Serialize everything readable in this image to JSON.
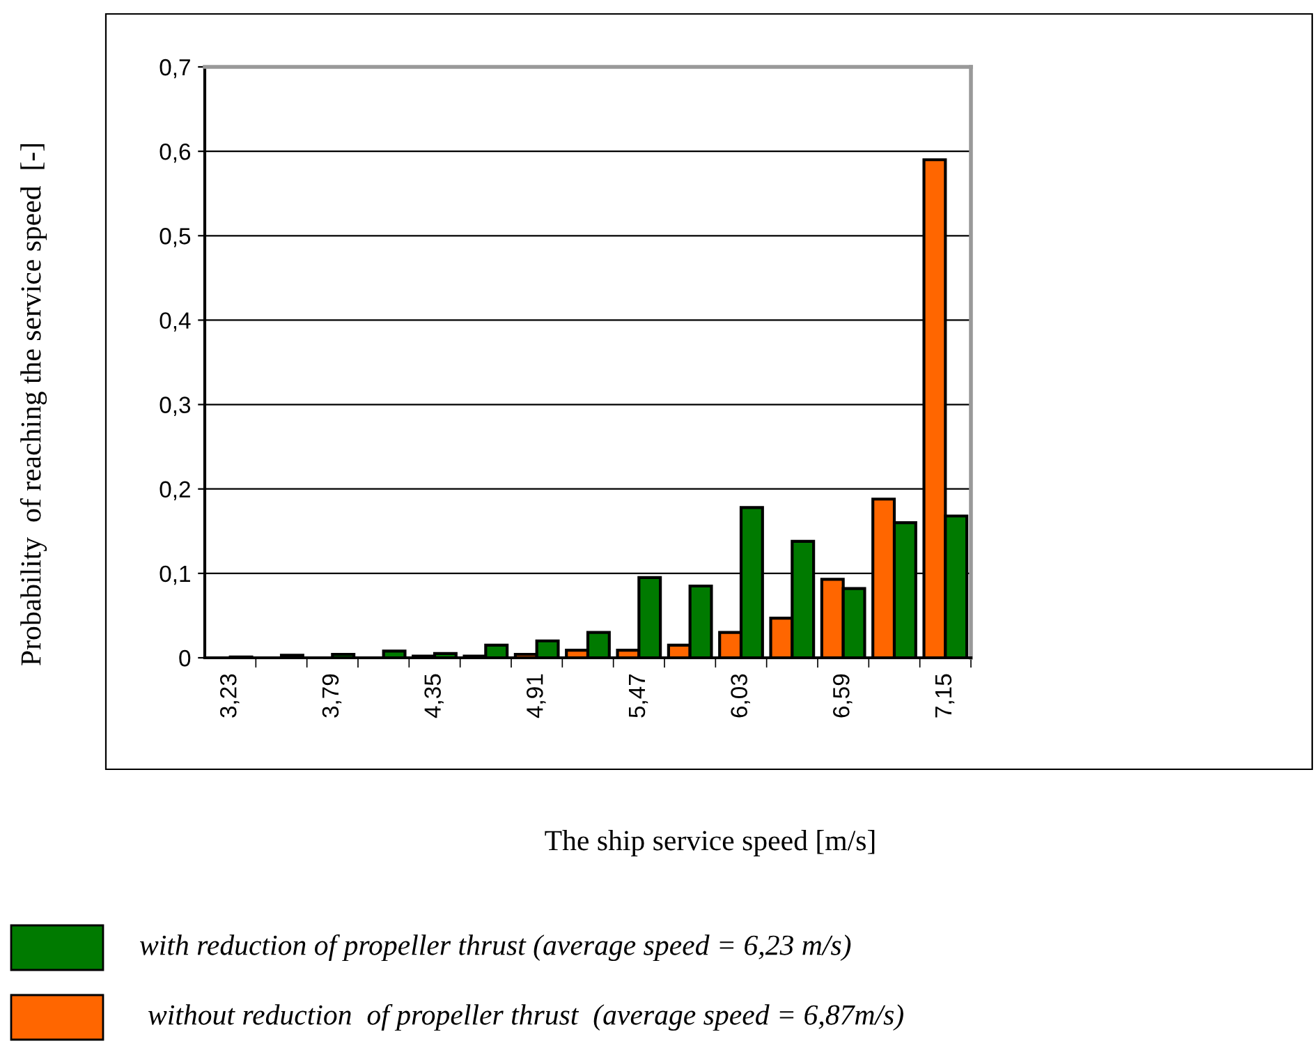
{
  "chart_data": {
    "type": "bar",
    "xlabel": "The ship service speed [m/s]",
    "ylabel": "Probability  of reaching the service speed  [-]",
    "categories": [
      "3,23",
      null,
      "3,79",
      null,
      "4,35",
      null,
      "4,91",
      null,
      "5,47",
      null,
      "6,03",
      null,
      "6,59",
      null,
      "7,15"
    ],
    "series": [
      {
        "name": "without reduction  of propeller thrust  (average speed = 6,87m/s)",
        "color": "#ff6600",
        "values": [
          null,
          null,
          null,
          null,
          0.002,
          0.002,
          0.004,
          0.009,
          0.009,
          0.015,
          0.03,
          0.047,
          0.093,
          0.188,
          0.59
        ]
      },
      {
        "name": "with reduction of propeller thrust (average speed = 6,23 m/s)",
        "color": "#007a00",
        "values": [
          0.001,
          0.003,
          0.004,
          0.008,
          0.005,
          0.015,
          0.02,
          0.03,
          0.095,
          0.085,
          0.178,
          0.138,
          0.082,
          0.16,
          0.168
        ]
      }
    ],
    "ylim": [
      0,
      0.7
    ],
    "yticks": [
      {
        "value": 0,
        "label": "0"
      },
      {
        "value": 0.1,
        "label": "0,1"
      },
      {
        "value": 0.2,
        "label": "0,2"
      },
      {
        "value": 0.3,
        "label": "0,3"
      },
      {
        "value": 0.4,
        "label": "0,4"
      },
      {
        "value": 0.5,
        "label": "0,5"
      },
      {
        "value": 0.6,
        "label": "0,6"
      },
      {
        "value": 0.7,
        "label": "0,7"
      }
    ],
    "grid": "y",
    "legend": "bottom"
  }
}
